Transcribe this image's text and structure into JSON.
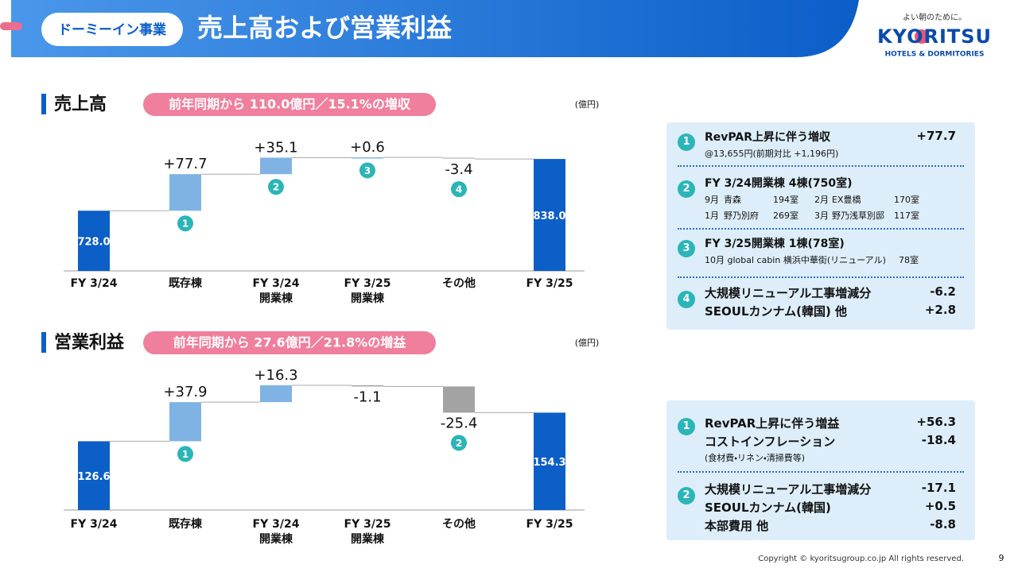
{
  "header": {
    "segment": "ドーミーイン事業",
    "title": "売上高および営業利益"
  },
  "logo": {
    "tagline": "よい朝のために。",
    "name": "KYORITSU",
    "sub": "HOTELS & DORMITORIES"
  },
  "sections": [
    {
      "heading": "売上高",
      "summary": "前年同期から 110.0億円／15.1%の増収",
      "unit": "(億円)"
    },
    {
      "heading": "営業利益",
      "summary": "前年同期から 27.6億円／21.8%の増益",
      "unit": "(億円)"
    }
  ],
  "chart_data": [
    {
      "type": "waterfall",
      "categories": [
        "FY 3/24",
        "既存棟",
        "FY 3/24\n開業棟",
        "FY 3/25\n開業棟",
        "その他",
        "FY 3/25"
      ],
      "values": [
        728.0,
        77.7,
        35.1,
        0.6,
        -3.4,
        838.0
      ],
      "value_labels": [
        "728.0",
        "+77.7",
        "+35.1",
        "+0.6",
        "-3.4",
        "838.0"
      ],
      "badges": [
        null,
        "1",
        "2",
        "3",
        "4",
        null
      ],
      "colors": {
        "total": "#0b5fc6",
        "increase": "#7fb3e3",
        "decrease": "#cfcfcf"
      },
      "ylim": [
        600,
        850
      ]
    },
    {
      "type": "waterfall",
      "categories": [
        "FY 3/24",
        "既存棟",
        "FY 3/24\n開業棟",
        "FY 3/25\n開業棟",
        "その他",
        "FY 3/25"
      ],
      "values": [
        126.6,
        37.9,
        16.3,
        -1.1,
        -25.4,
        154.3
      ],
      "value_labels": [
        "126.6",
        "+37.9",
        "+16.3",
        "-1.1",
        "-25.4",
        "154.3"
      ],
      "badges": [
        null,
        "1",
        null,
        null,
        "2",
        null
      ],
      "colors": {
        "total": "#0b5fc6",
        "increase": "#7fb3e3",
        "decrease": "#a3a3a3"
      },
      "ylim": [
        60,
        200
      ]
    }
  ],
  "panels": [
    {
      "items": [
        {
          "badge": "1",
          "title": "RevPAR上昇に伴う増収",
          "value": "+77.7",
          "note": "@13,655円(前期対比 +1,196円)"
        },
        {
          "badge": "2",
          "title": "FY 3/24開業棟  4棟(750室)",
          "rows": [
            [
              "9月",
              "青森",
              "194室",
              "2月",
              "EX豊橋",
              "170室"
            ],
            [
              "1月",
              "野乃別府",
              "269室",
              "3月",
              "野乃浅草別邸",
              "117室"
            ]
          ]
        },
        {
          "badge": "3",
          "title": "FY 3/25開業棟  1棟(78室)",
          "rows": [
            [
              "10月 global cabin 横浜中華街(リニューアル)",
              "78室"
            ]
          ]
        },
        {
          "badge": "4",
          "lines": [
            [
              "大規模リニューアル工事増減分",
              "-6.2"
            ],
            [
              "SEOULカンナム(韓国) 他",
              "+2.8"
            ]
          ]
        }
      ]
    },
    {
      "items": [
        {
          "badge": "1",
          "lines": [
            [
              "RevPAR上昇に伴う増益",
              "+56.3"
            ],
            [
              "コストインフレーション",
              "-18.4"
            ]
          ],
          "note": "(食材費・リネン・清掃費等)"
        },
        {
          "badge": "2",
          "lines": [
            [
              "大規模リニューアル工事増減分",
              "-17.1"
            ],
            [
              "SEOULカンナム(韓国)",
              "+0.5"
            ],
            [
              "本部費用 他",
              "-8.8"
            ]
          ]
        }
      ]
    }
  ],
  "footer": {
    "copyright": "Copyright © kyoritsugroup.co.jp All rights reserved.",
    "page": "9"
  }
}
